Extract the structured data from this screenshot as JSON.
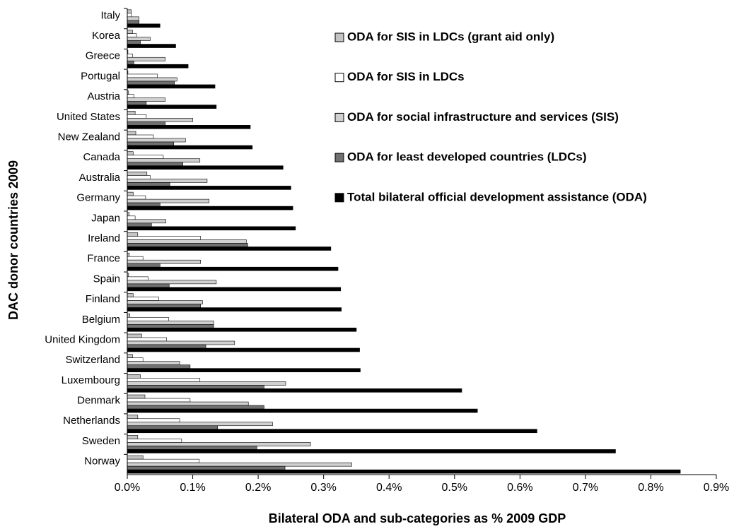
{
  "chart_data": {
    "type": "bar",
    "orientation": "horizontal",
    "x_label": "Bilateral ODA and sub-categories as % 2009 GDP",
    "y_label": "DAC donor countries 2009",
    "categories": [
      "Italy",
      "Korea",
      "Greece",
      "Portugal",
      "Austria",
      "United States",
      "New Zealand",
      "Canada",
      "Australia",
      "Germany",
      "Japan",
      "Ireland",
      "France",
      "Spain",
      "Finland",
      "Belgium",
      "United Kingdom",
      "Switzerland",
      "Luxembourg",
      "Denmark",
      "Netherlands",
      "Sweden",
      "Norway"
    ],
    "series": [
      {
        "name": "ODA for SIS in LDCs (grant aid only)",
        "color": "#c4c4c4",
        "values": [
          0.006,
          0.008,
          0.001,
          0.001,
          0.002,
          0.012,
          0.013,
          0.009,
          0.03,
          0.009,
          0.003,
          0.016,
          0.003,
          0.002,
          0.009,
          0.004,
          0.022,
          0.008,
          0.02,
          0.027,
          0.016,
          0.016,
          0.024
        ]
      },
      {
        "name": "ODA for SIS in LDCs",
        "color": "#ffffff",
        "values": [
          0.006,
          0.014,
          0.008,
          0.046,
          0.01,
          0.029,
          0.04,
          0.055,
          0.035,
          0.028,
          0.012,
          0.112,
          0.024,
          0.032,
          0.048,
          0.063,
          0.06,
          0.024,
          0.111,
          0.096,
          0.08,
          0.083,
          0.11
        ]
      },
      {
        "name": "ODA for social infrastructure and services (SIS)",
        "color": "#d0d0d0",
        "values": [
          0.018,
          0.035,
          0.058,
          0.076,
          0.058,
          0.1,
          0.089,
          0.111,
          0.122,
          0.125,
          0.059,
          0.182,
          0.112,
          0.136,
          0.115,
          0.132,
          0.164,
          0.08,
          0.242,
          0.185,
          0.222,
          0.28,
          0.343
        ]
      },
      {
        "name": "ODA for least developed countries (LDCs)",
        "color": "#707070",
        "values": [
          0.018,
          0.02,
          0.01,
          0.072,
          0.029,
          0.058,
          0.071,
          0.085,
          0.065,
          0.05,
          0.037,
          0.184,
          0.05,
          0.064,
          0.112,
          0.132,
          0.12,
          0.096,
          0.209,
          0.209,
          0.138,
          0.198,
          0.241
        ]
      },
      {
        "name": "Total bilateral official development assistance (ODA)",
        "color": "#000000",
        "values": [
          0.05,
          0.074,
          0.093,
          0.134,
          0.136,
          0.188,
          0.191,
          0.238,
          0.25,
          0.253,
          0.257,
          0.311,
          0.322,
          0.326,
          0.327,
          0.35,
          0.355,
          0.356,
          0.511,
          0.535,
          0.626,
          0.746,
          0.845
        ]
      }
    ],
    "xlim": [
      0,
      0.9
    ],
    "xticks": [
      {
        "value": 0,
        "label": "0.0%"
      },
      {
        "value": 0.1,
        "label": "0.1%"
      },
      {
        "value": 0.2,
        "label": "0.2%"
      },
      {
        "value": 0.3,
        "label": "0.3%"
      },
      {
        "value": 0.4,
        "label": "0.4%"
      },
      {
        "value": 0.5,
        "label": "0.5%"
      },
      {
        "value": 0.6,
        "label": "0.6%"
      },
      {
        "value": 0.7,
        "label": "0.7%"
      },
      {
        "value": 0.8,
        "label": "0.8%"
      },
      {
        "value": 0.9,
        "label": "0.9%"
      }
    ],
    "grid": false
  }
}
